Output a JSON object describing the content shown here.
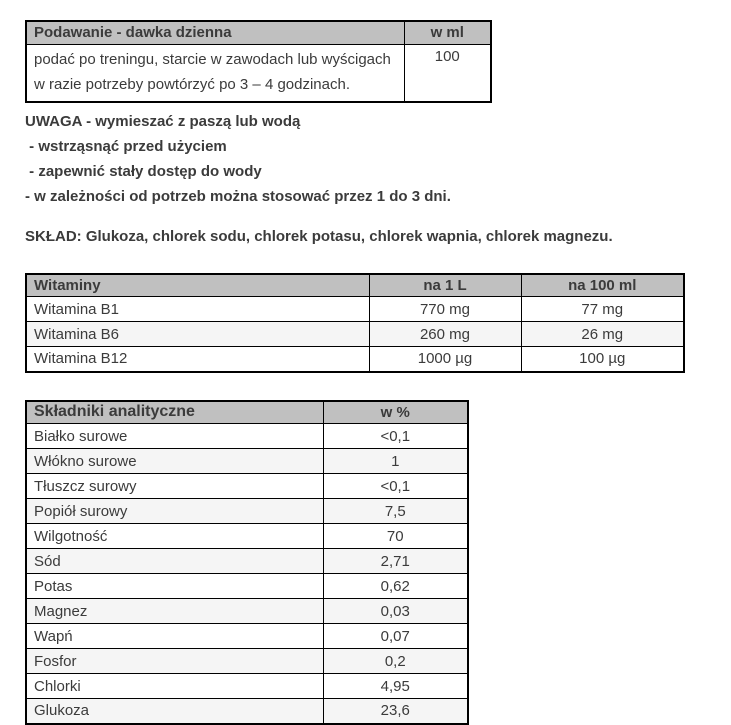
{
  "colors": {
    "header_bg": "#c0c0c0",
    "row_alt_bg": "#f5f5f5",
    "border": "#000000",
    "text": "#3b3b3b"
  },
  "dosage_table": {
    "headers": [
      "Podawanie - dawka dzienna",
      "w ml"
    ],
    "row": {
      "line1": "podać po treningu, starcie w zawodach lub wyścigach",
      "line2": "w razie potrzeby powtórzyć po 3 – 4 godzinach.",
      "value": "100"
    }
  },
  "notes": {
    "lines": [
      "UWAGA - wymieszać z paszą lub wodą",
      " - wstrząsnąć przed użyciem",
      " - zapewnić stały dostęp do wody",
      "- w zależności od potrzeb można stosować przez 1 do 3 dni."
    ]
  },
  "composition": {
    "text": "SKŁAD: Glukoza, chlorek sodu, chlorek potasu, chlorek wapnia, chlorek magnezu."
  },
  "vitamins_table": {
    "headers": [
      "Witaminy",
      "na 1 L",
      "na 100 ml"
    ],
    "rows": [
      [
        "Witamina B1",
        "770 mg",
        "77 mg"
      ],
      [
        "Witamina B6",
        "260 mg",
        "26 mg"
      ],
      [
        "Witamina B12",
        "1000 µg",
        "100 µg"
      ]
    ]
  },
  "analytical_table": {
    "headers": [
      "Składniki analityczne",
      "w %"
    ],
    "rows": [
      [
        "Białko surowe",
        "<0,1"
      ],
      [
        "Włókno surowe",
        "1"
      ],
      [
        "Tłuszcz surowy",
        "<0,1"
      ],
      [
        "Popiół surowy",
        "7,5"
      ],
      [
        "Wilgotność",
        "70"
      ],
      [
        "Sód",
        "2,71"
      ],
      [
        "Potas",
        "0,62"
      ],
      [
        "Magnez",
        "0,03"
      ],
      [
        "Wapń",
        "0,07"
      ],
      [
        "Fosfor",
        "0,2"
      ],
      [
        "Chlorki",
        "4,95"
      ],
      [
        "Glukoza",
        "23,6"
      ]
    ]
  }
}
